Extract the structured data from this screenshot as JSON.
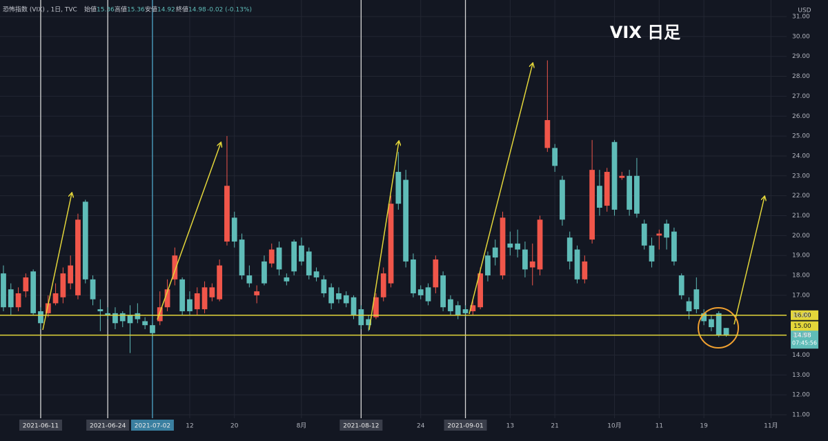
{
  "header": {
    "symbol": "恐怖指数 (VIX) , 1日, TVC",
    "open_label": "始値",
    "open": "15.36",
    "high_label": "高値",
    "high": "15.36",
    "low_label": "安値",
    "low": "14.92",
    "close_label": "終値",
    "close": "14.98",
    "change": "-0.02 (-0.13%)"
  },
  "chart_data": {
    "type": "candlestick",
    "title": "VIX 日足",
    "currency": "USD",
    "up_color": "#f0564a",
    "down_color": "#5fbcb8",
    "open": [
      18.1,
      17.3,
      16.4,
      17.2,
      18.2,
      16.2,
      16.1,
      16.6,
      16.9,
      17.6,
      17.0,
      21.7,
      17.8,
      16.3,
      16.1,
      16.1,
      16.1,
      16.0,
      16.1,
      15.7,
      15.5,
      15.7,
      16.4,
      17.8,
      17.8,
      16.8,
      16.3,
      16.3,
      16.9,
      16.8,
      19.7,
      20.9,
      19.8,
      18.0,
      17.0,
      18.7,
      18.6,
      19.4,
      17.9,
      19.7,
      19.5,
      19.2,
      18.2,
      17.8,
      17.4,
      17.1,
      17.0,
      16.9,
      16.3,
      15.8,
      15.9,
      16.9,
      17.6,
      23.2,
      22.8,
      18.8,
      17.3,
      17.4,
      17.4,
      18.0,
      16.8,
      16.5,
      16.3,
      16.2,
      16.4,
      19.0,
      19.4,
      18.0,
      19.6,
      19.6,
      19.3,
      18.4,
      18.3,
      24.4,
      24.4,
      22.8,
      19.9,
      19.3,
      17.8,
      19.8,
      22.5,
      21.5,
      24.7,
      22.9,
      23.0,
      23.0,
      20.6,
      19.5,
      20.0,
      20.6,
      20.2,
      18.0,
      16.7,
      17.3,
      16.1,
      15.8,
      16.1,
      15.36
    ],
    "high": [
      18.5,
      17.6,
      17.4,
      18.1,
      18.3,
      16.4,
      17.0,
      17.6,
      18.4,
      19.0,
      21.1,
      21.8,
      18.0,
      16.8,
      16.4,
      16.4,
      16.2,
      16.5,
      16.6,
      15.9,
      15.6,
      17.2,
      17.8,
      19.4,
      17.9,
      17.2,
      17.4,
      17.7,
      17.6,
      18.8,
      25.0,
      21.2,
      20.1,
      18.5,
      17.5,
      19.0,
      19.6,
      19.7,
      18.1,
      19.8,
      19.9,
      19.4,
      18.4,
      18.0,
      17.6,
      17.4,
      17.2,
      17.0,
      16.5,
      16.0,
      17.1,
      18.4,
      22.0,
      24.2,
      23.3,
      19.1,
      17.5,
      17.6,
      19.0,
      18.2,
      17.0,
      16.7,
      16.5,
      16.8,
      18.4,
      19.2,
      19.8,
      21.2,
      20.2,
      20.3,
      19.7,
      19.6,
      21.0,
      28.8,
      24.6,
      23.0,
      20.2,
      19.5,
      19.0,
      24.8,
      23.3,
      23.4,
      24.8,
      23.2,
      23.3,
      23.9,
      20.8,
      19.9,
      20.3,
      20.8,
      20.4,
      18.1,
      16.9,
      17.9,
      16.3,
      16.0,
      16.2,
      15.36
    ],
    "low": [
      16.2,
      16.0,
      16.2,
      16.9,
      16.0,
      15.3,
      15.9,
      16.5,
      16.6,
      17.3,
      16.8,
      17.6,
      16.5,
      15.2,
      15.8,
      15.3,
      15.4,
      14.1,
      15.6,
      15.3,
      14.9,
      15.5,
      16.2,
      17.5,
      16.0,
      16.0,
      16.0,
      16.1,
      16.7,
      16.7,
      19.5,
      19.4,
      17.8,
      17.4,
      16.6,
      17.5,
      18.4,
      18.0,
      17.5,
      18.0,
      18.5,
      17.8,
      17.7,
      16.9,
      16.3,
      16.6,
      16.4,
      15.8,
      15.3,
      15.2,
      15.8,
      16.7,
      17.4,
      21.3,
      18.4,
      16.9,
      16.8,
      16.5,
      17.1,
      16.2,
      16.0,
      15.8,
      15.9,
      16.0,
      16.3,
      17.7,
      18.5,
      17.8,
      19.0,
      18.9,
      17.9,
      17.5,
      18.0,
      24.2,
      23.2,
      20.5,
      18.3,
      17.6,
      17.6,
      19.6,
      21.0,
      21.2,
      21.0,
      22.8,
      21.0,
      20.9,
      19.3,
      18.4,
      19.3,
      19.3,
      18.5,
      16.8,
      15.8,
      16.1,
      15.5,
      15.2,
      14.9,
      14.92
    ],
    "close": [
      16.4,
      16.4,
      17.1,
      17.9,
      16.1,
      15.6,
      16.6,
      17.1,
      18.1,
      18.5,
      20.8,
      17.8,
      16.8,
      16.2,
      16.0,
      15.6,
      15.7,
      15.6,
      15.8,
      15.5,
      15.1,
      16.4,
      17.3,
      19.0,
      16.2,
      16.2,
      17.1,
      17.4,
      17.4,
      18.5,
      22.5,
      19.7,
      18.0,
      17.6,
      17.2,
      17.6,
      19.3,
      18.3,
      17.7,
      18.2,
      18.7,
      18.0,
      17.9,
      17.1,
      16.6,
      16.8,
      16.6,
      16.0,
      15.5,
      15.5,
      16.9,
      18.1,
      21.6,
      21.6,
      18.7,
      17.1,
      17.0,
      16.7,
      18.8,
      16.4,
      16.2,
      16.0,
      16.1,
      16.5,
      18.1,
      18.0,
      18.9,
      20.9,
      19.4,
      19.3,
      18.3,
      18.7,
      20.8,
      25.8,
      23.5,
      20.8,
      18.7,
      17.8,
      18.7,
      23.3,
      21.4,
      23.2,
      21.3,
      23.0,
      21.3,
      21.1,
      19.5,
      18.7,
      20.1,
      19.9,
      18.7,
      17.0,
      16.2,
      16.3,
      15.7,
      15.4,
      15.0,
      14.98
    ],
    "xlim": [
      -0.46,
      105.1
    ],
    "xticks": [
      {
        "value": 5,
        "label": "2021-06-11"
      },
      {
        "value": 14,
        "label": "2021-06-24"
      },
      {
        "value": 20,
        "label": "2021-07-02"
      },
      {
        "value": 25,
        "label": "12"
      },
      {
        "value": 31,
        "label": "20"
      },
      {
        "value": 40,
        "label": "8月"
      },
      {
        "value": 48,
        "label": "2021-08-12"
      },
      {
        "value": 56,
        "label": "24"
      },
      {
        "value": 62,
        "label": "2021-09-01"
      },
      {
        "value": 68,
        "label": "13"
      },
      {
        "value": 74,
        "label": "21"
      },
      {
        "value": 82,
        "label": "10月"
      },
      {
        "value": 88,
        "label": "11"
      },
      {
        "value": 94,
        "label": "19"
      },
      {
        "value": 103,
        "label": "11月"
      }
    ],
    "ylim": [
      11,
      31.2
    ],
    "yticks": [
      {
        "value": 11,
        "label": "11.00"
      },
      {
        "value": 12,
        "label": "12.00"
      },
      {
        "value": 13,
        "label": "13.00"
      },
      {
        "value": 14,
        "label": "14.00"
      },
      {
        "value": 15,
        "label": "15.00"
      },
      {
        "value": 16,
        "label": "16.00"
      },
      {
        "value": 17,
        "label": "17.00"
      },
      {
        "value": 18,
        "label": "18.00"
      },
      {
        "value": 19,
        "label": "19.00"
      },
      {
        "value": 20,
        "label": "20.00"
      },
      {
        "value": 21,
        "label": "21.00"
      },
      {
        "value": 22,
        "label": "22.00"
      },
      {
        "value": 23,
        "label": "23.00"
      },
      {
        "value": 24,
        "label": "24.00"
      },
      {
        "value": 25,
        "label": "25.00"
      },
      {
        "value": 26,
        "label": "26.00"
      },
      {
        "value": 27,
        "label": "27.00"
      },
      {
        "value": 28,
        "label": "28.00"
      },
      {
        "value": 29,
        "label": "29.00"
      },
      {
        "value": 30,
        "label": "30.00"
      },
      {
        "value": 31,
        "label": "31.00"
      }
    ],
    "grid": true,
    "vlines": [
      {
        "value": 5,
        "color": "#d8d8d8"
      },
      {
        "value": 14,
        "color": "#d8d8d8"
      },
      {
        "value": 20,
        "color": "#4fa7c9"
      },
      {
        "value": 48,
        "color": "#d8d8d8"
      },
      {
        "value": 62,
        "color": "#d8d8d8"
      }
    ],
    "hlines": [
      {
        "value": 16,
        "label": "16.00",
        "color": "#e3d63a"
      },
      {
        "value": 15,
        "label": "15.00",
        "color": "#e3d63a"
      }
    ],
    "last_price": 14.98,
    "countdown": "07:45:56"
  }
}
